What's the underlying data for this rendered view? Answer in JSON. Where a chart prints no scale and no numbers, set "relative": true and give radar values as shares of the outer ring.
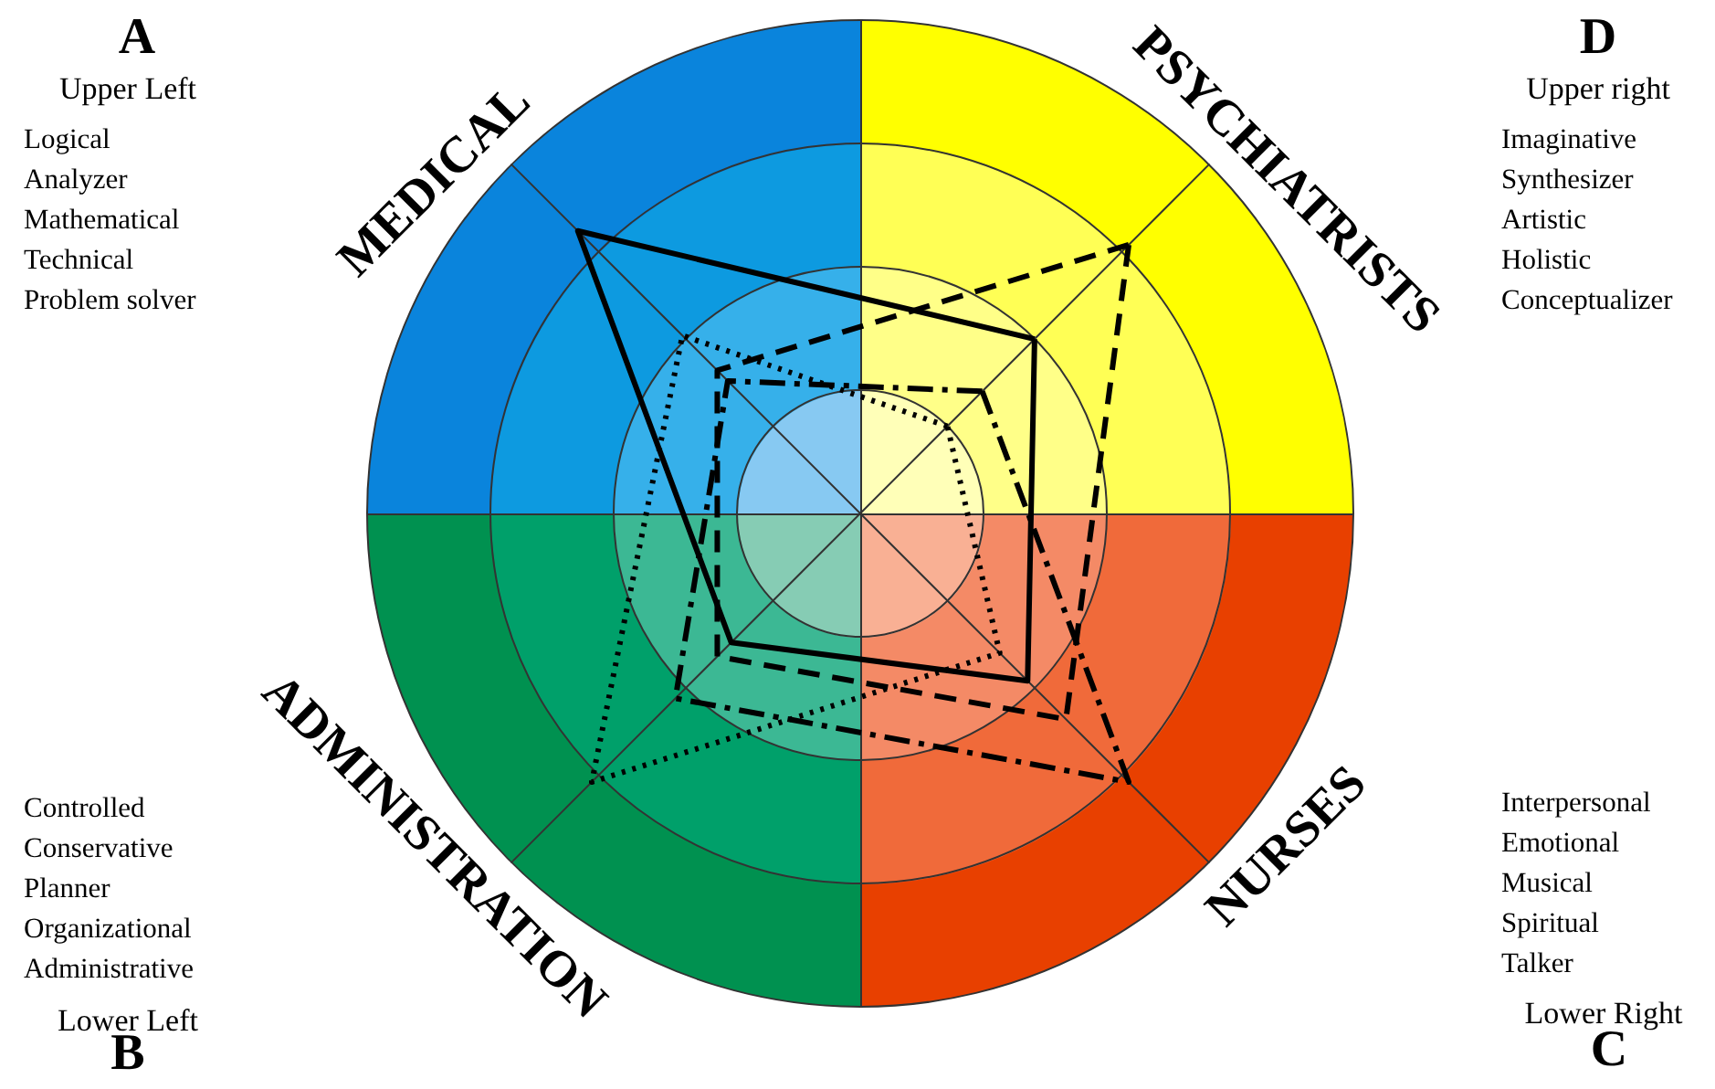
{
  "chart_data": {
    "type": "radar",
    "relative": true,
    "categories": [
      "PSYCHIATRISTS",
      "NURSES",
      "ADMINISTRATION",
      "MEDICAL"
    ],
    "marker": "none",
    "series": [
      {
        "color": "#000000",
        "line_style": "solid",
        "values": [
          0.5,
          0.48,
          0.37,
          0.81
        ]
      },
      {
        "color": "#000000",
        "line_style": "dashed",
        "values": [
          0.77,
          0.59,
          0.41,
          0.41
        ]
      },
      {
        "color": "#000000",
        "line_style": "dotted",
        "values": [
          0.25,
          0.4,
          0.77,
          0.51
        ]
      },
      {
        "color": "#000000",
        "line_style": "dashdot",
        "values": [
          0.35,
          0.77,
          0.53,
          0.38
        ]
      }
    ],
    "annotations": [
      "A",
      "Upper Left",
      "Logical\nAnalyzer\nMathematical\nTechnical\nProblem solver",
      "D",
      "Upper right",
      "Imaginative\nSynthesizer\nArtistic\nHolistic\nConceptualizer",
      "Controlled\nConservative\nPlanner\nOrganizational\nAdministrative",
      "Lower Left",
      "B",
      "Interpersonal\nEmotional\nMusical\nSpiritual\nTalker",
      "Lower Right",
      "C"
    ]
  }
}
